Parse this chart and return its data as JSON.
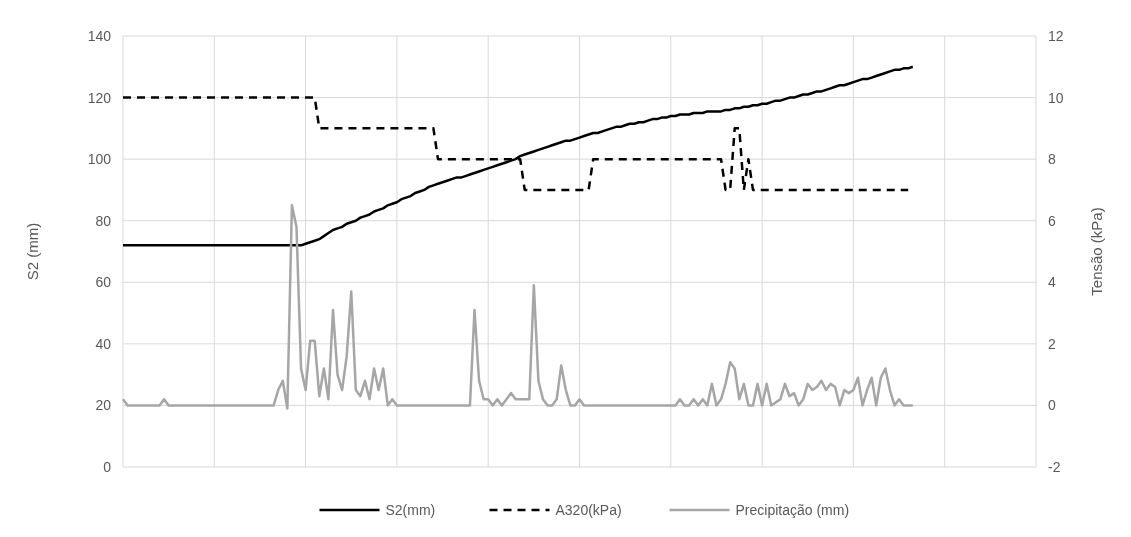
{
  "chart_data": {
    "type": "line",
    "ylabel": "S2 (mm)",
    "y2label": "Tensão (kPa)",
    "categories": [
      null,
      null,
      null,
      null,
      null,
      null,
      null,
      null,
      null,
      null,
      null,
      null,
      null,
      null,
      null,
      null,
      null,
      null,
      null,
      null,
      null,
      null,
      null,
      null,
      null,
      null,
      null,
      null,
      null,
      null,
      null,
      null,
      null,
      null,
      null,
      null,
      null,
      null,
      null,
      null,
      null,
      null,
      null,
      null,
      null,
      null,
      null,
      null,
      null,
      null,
      null,
      null,
      null,
      null,
      null,
      null,
      null,
      null,
      null,
      null,
      null,
      null,
      null,
      null,
      null,
      null,
      null,
      null,
      null,
      null,
      null,
      null,
      null,
      null,
      null,
      null,
      null,
      null,
      null,
      null,
      null,
      null,
      null,
      null,
      null,
      null,
      null,
      null,
      null,
      null,
      null,
      null,
      null,
      null,
      null,
      null,
      null,
      null,
      null,
      null,
      null,
      null,
      null,
      null,
      null,
      null,
      null,
      null,
      null,
      null,
      null,
      null,
      null,
      null,
      null,
      null,
      null,
      null,
      null,
      null,
      null,
      null,
      null,
      null,
      null,
      null,
      null,
      null,
      null,
      null,
      null,
      null,
      null,
      null,
      null,
      null,
      null,
      null,
      null,
      null,
      null,
      null,
      null,
      null,
      null,
      null,
      null,
      null,
      null,
      null,
      null,
      null,
      null,
      null,
      null,
      null,
      null,
      null,
      null,
      null,
      null,
      null,
      null,
      null,
      null,
      null,
      null,
      null,
      null,
      null,
      null,
      null,
      null,
      null,
      null,
      null,
      null,
      null,
      null,
      null,
      null,
      null,
      null,
      null,
      null,
      null,
      null,
      null,
      null,
      null,
      null,
      null,
      null,
      null,
      null,
      null,
      null,
      null,
      null,
      null,
      null
    ],
    "ylim": [
      0,
      140
    ],
    "yticks": [
      0,
      20,
      40,
      60,
      80,
      100,
      120,
      140
    ],
    "y2lim": [
      -2,
      12
    ],
    "y2ticks": [
      -2,
      0,
      2,
      4,
      6,
      8,
      10,
      12
    ],
    "grid": true,
    "legend": "bottom",
    "series": [
      {
        "name": "S2(mm)",
        "color": "#000000",
        "line_style": "solid",
        "values": [
          72,
          72,
          72,
          72,
          72,
          72,
          72,
          72,
          72,
          72,
          72,
          72,
          72,
          72,
          72,
          72,
          72,
          72,
          72,
          72,
          72,
          72,
          72,
          72,
          72,
          72,
          72,
          72,
          72,
          72,
          72,
          72,
          72,
          72,
          72,
          72,
          72,
          72,
          72,
          72,
          72.5,
          73,
          73.5,
          74,
          75,
          76,
          77,
          77.5,
          78,
          79,
          79.5,
          80,
          81,
          81.5,
          82,
          83,
          83.5,
          84,
          85,
          85.5,
          86,
          87,
          87.5,
          88,
          89,
          89.5,
          90,
          91,
          91.5,
          92,
          92.5,
          93,
          93.5,
          94,
          94,
          94.5,
          95,
          95.5,
          96,
          96.5,
          97,
          97.5,
          98,
          98.5,
          99,
          99.5,
          100,
          101,
          101.5,
          102,
          102.5,
          103,
          103.5,
          104,
          104.5,
          105,
          105.5,
          106,
          106,
          106.5,
          107,
          107.5,
          108,
          108.5,
          108.5,
          109,
          109.5,
          110,
          110.5,
          110.5,
          111,
          111.5,
          111.5,
          112,
          112,
          112.5,
          113,
          113,
          113.5,
          113.5,
          114,
          114,
          114.5,
          114.5,
          114.5,
          115,
          115,
          115,
          115.5,
          115.5,
          115.5,
          115.5,
          116,
          116,
          116.5,
          116.5,
          117,
          117,
          117.5,
          117.5,
          118,
          118,
          118.5,
          119,
          119,
          119.5,
          120,
          120,
          120.5,
          121,
          121,
          121.5,
          122,
          122,
          122.5,
          123,
          123.5,
          124,
          124,
          124.5,
          125,
          125.5,
          126,
          126,
          126.5,
          127,
          127.5,
          128,
          128.5,
          129,
          129,
          129.5,
          129.5,
          130,
          null,
          null,
          null,
          null,
          null,
          null,
          null,
          null,
          null,
          null,
          null,
          null,
          null,
          null,
          null,
          null,
          null,
          null,
          null,
          null,
          null,
          null,
          null,
          null,
          null,
          null,
          null
        ]
      },
      {
        "name": "A320(kPa)",
        "color": "#000000",
        "line_style": "dashed",
        "axis": "y2",
        "values": [
          10,
          10,
          10,
          10,
          10,
          10,
          10,
          10,
          10,
          10,
          10,
          10,
          10,
          10,
          10,
          10,
          10,
          10,
          10,
          10,
          10,
          10,
          10,
          10,
          10,
          10,
          10,
          10,
          10,
          10,
          10,
          10,
          10,
          10,
          10,
          10,
          10,
          10,
          10,
          10,
          10,
          10,
          10,
          9,
          9,
          9,
          9,
          9,
          9,
          9,
          9,
          9,
          9,
          9,
          9,
          9,
          9,
          9,
          9,
          9,
          9,
          9,
          9,
          9,
          9,
          9,
          9,
          9,
          9,
          8,
          8,
          8,
          8,
          8,
          8,
          8,
          8,
          8,
          8,
          8,
          8,
          8,
          8,
          8,
          8,
          8,
          8,
          8,
          7,
          7,
          7,
          7,
          7,
          7,
          7,
          7,
          7,
          7,
          7,
          7,
          7,
          7,
          7,
          8,
          8,
          8,
          8,
          8,
          8,
          8,
          8,
          8,
          8,
          8,
          8,
          8,
          8,
          8,
          8,
          8,
          8,
          8,
          8,
          8,
          8,
          8,
          8,
          8,
          8,
          8,
          8,
          8,
          7,
          7,
          9,
          9,
          7,
          8,
          7,
          7,
          7,
          7,
          7,
          7,
          7,
          7,
          7,
          7,
          7,
          7,
          7,
          7,
          7,
          7,
          7,
          7,
          7,
          7,
          7,
          7,
          7,
          7,
          7,
          7,
          7,
          7,
          7,
          7,
          7,
          7,
          7,
          7,
          7,
          null,
          null,
          null,
          null,
          null,
          null,
          null,
          null,
          null,
          null,
          null,
          null,
          null,
          null,
          null,
          null,
          null,
          null,
          null,
          null,
          null,
          null,
          null,
          null,
          null,
          null,
          null,
          null
        ]
      },
      {
        "name": "Precipitação (mm)",
        "color": "#a6a6a6",
        "line_style": "solid",
        "axis": "y2",
        "values": [
          0.2,
          0,
          0,
          0,
          0,
          0,
          0,
          0,
          0,
          0.2,
          0,
          0,
          0,
          0,
          0,
          0,
          0,
          0,
          0,
          0,
          0,
          0,
          0,
          0,
          0,
          0,
          0,
          0,
          0,
          0,
          0,
          0,
          0,
          0,
          0.5,
          0.8,
          -0.1,
          6.5,
          5.8,
          1.2,
          0.5,
          2.1,
          2.1,
          0.3,
          1.2,
          0.2,
          3.1,
          1.0,
          0.5,
          1.6,
          3.7,
          0.5,
          0.3,
          0.8,
          0.2,
          1.2,
          0.5,
          1.2,
          0,
          0.2,
          0,
          0,
          0,
          0,
          0,
          0,
          0,
          0,
          0,
          0,
          0,
          0,
          0,
          0,
          0,
          0,
          0,
          3.1,
          0.8,
          0.2,
          0.2,
          0,
          0.2,
          0,
          0.2,
          0.4,
          0.2,
          0.2,
          0.2,
          0.2,
          3.9,
          0.8,
          0.2,
          0,
          0,
          0.2,
          1.3,
          0.5,
          0,
          0,
          0.2,
          0,
          0,
          0,
          0,
          0,
          0,
          0,
          0,
          0,
          0,
          0,
          0,
          0,
          0,
          0,
          0,
          0,
          0,
          0,
          0,
          0,
          0.2,
          0,
          0,
          0.2,
          0,
          0.2,
          0,
          0.7,
          0,
          0.2,
          0.7,
          1.4,
          1.2,
          0.2,
          0.7,
          0,
          0,
          0.7,
          0,
          0.7,
          0,
          0.1,
          0.2,
          0.7,
          0.3,
          0.4,
          0,
          0.2,
          0.7,
          0.5,
          0.6,
          0.8,
          0.5,
          0.7,
          0.6,
          0,
          0.5,
          0.4,
          0.5,
          0.9,
          0,
          0.5,
          0.9,
          0,
          0.9,
          1.2,
          0.5,
          0,
          0.2,
          0,
          0,
          0,
          null,
          null,
          null,
          null,
          null,
          null,
          null,
          null,
          null,
          null,
          null,
          null,
          null,
          null,
          null,
          null,
          null,
          null,
          null,
          null,
          null,
          null,
          null,
          null,
          null,
          null,
          null
        ]
      }
    ]
  }
}
